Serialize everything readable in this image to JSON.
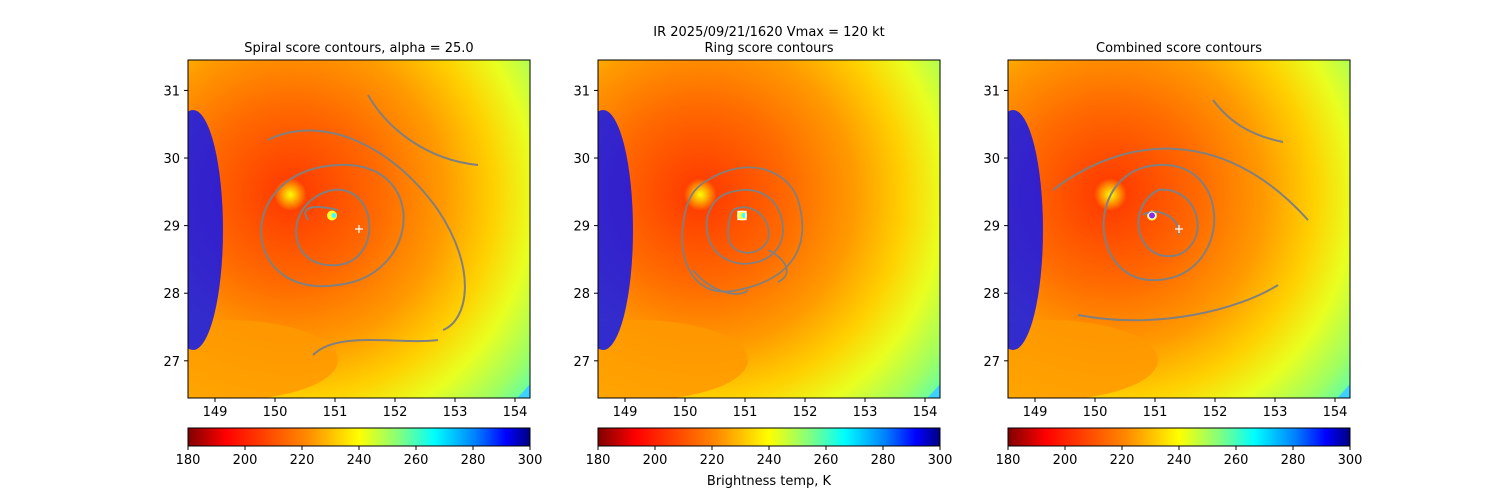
{
  "figure": {
    "suptitle_line1": "IR  2025/09/21/1620    Vmax = 120 kt",
    "colorbar_label": "Brightness temp, K"
  },
  "chart_data": [
    {
      "type": "heatmap",
      "title": "Spiral score contours, alpha = 25.0",
      "x_ticks": [
        "149",
        "150",
        "151",
        "152",
        "153",
        "154"
      ],
      "y_ticks": [
        "27",
        "28",
        "29",
        "30",
        "31"
      ],
      "xlim": [
        148.55,
        154.25
      ],
      "ylim": [
        26.45,
        31.45
      ],
      "center_marker": {
        "lon": 151.4,
        "lat": 28.95,
        "kind": "plus"
      },
      "storm_center": {
        "lon": 150.95,
        "lat": 29.15
      },
      "colorbar": {
        "vmin": 180,
        "vmax": 300,
        "ticks": [
          "180",
          "200",
          "220",
          "240",
          "260",
          "280",
          "300"
        ],
        "colormap": "jet_r"
      }
    },
    {
      "type": "heatmap",
      "title": "Ring score contours",
      "x_ticks": [
        "149",
        "150",
        "151",
        "152",
        "153",
        "154"
      ],
      "y_ticks": [
        "27",
        "28",
        "29",
        "30",
        "31"
      ],
      "xlim": [
        148.55,
        154.25
      ],
      "ylim": [
        26.45,
        31.45
      ],
      "center_marker": {
        "lon": 150.95,
        "lat": 29.15,
        "kind": "square"
      },
      "storm_center": {
        "lon": 150.95,
        "lat": 29.15
      },
      "colorbar": {
        "vmin": 180,
        "vmax": 300,
        "ticks": [
          "180",
          "200",
          "220",
          "240",
          "260",
          "280",
          "300"
        ],
        "colormap": "jet_r"
      }
    },
    {
      "type": "heatmap",
      "title": "Combined score contours",
      "x_ticks": [
        "149",
        "150",
        "151",
        "152",
        "153",
        "154"
      ],
      "y_ticks": [
        "27",
        "28",
        "29",
        "30",
        "31"
      ],
      "xlim": [
        148.55,
        154.25
      ],
      "ylim": [
        26.45,
        31.45
      ],
      "center_marker": {
        "lon": 151.4,
        "lat": 28.95,
        "kind": "plus"
      },
      "best_marker": {
        "lon": 150.95,
        "lat": 29.15,
        "kind": "circle",
        "color": "#8a2be2"
      },
      "storm_center": {
        "lon": 150.95,
        "lat": 29.15
      },
      "colorbar": {
        "vmin": 180,
        "vmax": 300,
        "ticks": [
          "180",
          "200",
          "220",
          "240",
          "260",
          "280",
          "300"
        ],
        "colormap": "jet_r"
      }
    }
  ],
  "colors": {
    "contour": "#808080",
    "jet_r_stops": [
      "#800000",
      "#ff0000",
      "#ff8000",
      "#ffff00",
      "#80ff80",
      "#00ffff",
      "#0080ff",
      "#0000ff",
      "#000080"
    ]
  }
}
